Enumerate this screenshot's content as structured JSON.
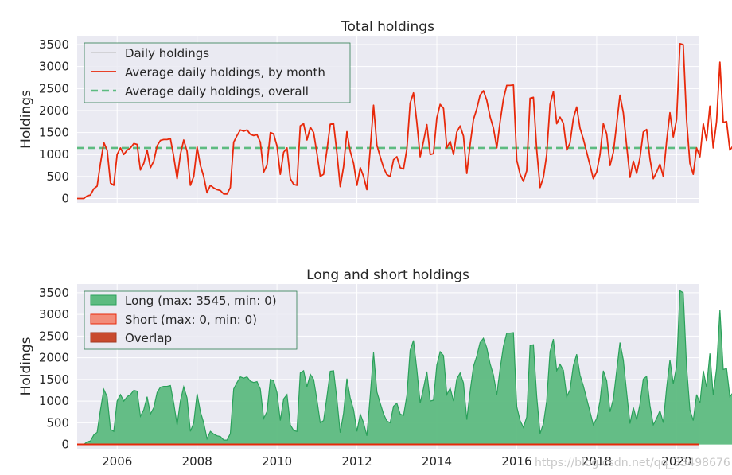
{
  "colors": {
    "plot_bg": "#EAEAF2",
    "grid": "#FFFFFF",
    "daily": "#A9A9A9",
    "monthly": "#E8290B",
    "overall": "#5DBB80",
    "long_fill": "#5DBB80",
    "long_edge": "#2AA05A",
    "short_fill": "#F28C7A",
    "short_edge": "#E8290B",
    "overlap_fill": "#C84A2E",
    "overlap_edge": "#A33A22",
    "legend_border": "#2E7D4F"
  },
  "watermark": "https://blog.csdn.net/qq_33498676",
  "chart_data": [
    {
      "type": "line",
      "title": "Total holdings",
      "xlabel": "",
      "ylabel": "Holdings",
      "xlim": [
        2005.0,
        2020.55
      ],
      "ylim": [
        -100,
        3700
      ],
      "yticks": [
        0,
        500,
        1000,
        1500,
        2000,
        2500,
        3000,
        3500
      ],
      "grid": true,
      "legend_placement": "top-left",
      "legend": [
        "Daily holdings",
        "Average daily holdings, by month",
        "Average daily holdings, overall"
      ],
      "overall_average": 1150,
      "series": [
        {
          "name": "Average daily holdings, by month",
          "x_start": 2005.0,
          "x_step_months": 1,
          "values": [
            0,
            0,
            0,
            60,
            80,
            220,
            280,
            800,
            1270,
            1100,
            350,
            300,
            1000,
            1150,
            1000,
            1100,
            1150,
            1250,
            1230,
            650,
            800,
            1100,
            700,
            850,
            1200,
            1320,
            1340,
            1340,
            1360,
            950,
            450,
            1000,
            1330,
            1070,
            300,
            500,
            1170,
            750,
            500,
            130,
            300,
            240,
            200,
            180,
            100,
            100,
            250,
            1280,
            1430,
            1560,
            1530,
            1560,
            1460,
            1430,
            1450,
            1280,
            600,
            760,
            1500,
            1470,
            1200,
            550,
            1050,
            1150,
            450,
            320,
            300,
            1650,
            1700,
            1330,
            1620,
            1500,
            1020,
            500,
            550,
            1100,
            1690,
            1700,
            1030,
            270,
            720,
            1520,
            1070,
            800,
            300,
            700,
            500,
            200,
            1120,
            2120,
            1210,
            950,
            700,
            540,
            500,
            880,
            950,
            700,
            670,
            1130,
            2170,
            2400,
            1730,
            950,
            1300,
            1680,
            1000,
            1020,
            1830,
            2140,
            2050,
            1150,
            1300,
            1000,
            1510,
            1650,
            1420,
            570,
            1230,
            1800,
            2040,
            2350,
            2450,
            2230,
            1860,
            1600,
            1150,
            1740,
            2260,
            2570,
            2570,
            2580,
            870,
            550,
            390,
            630,
            2280,
            2300,
            1100,
            250,
            480,
            1000,
            2140,
            2430,
            1700,
            1850,
            1710,
            1100,
            1260,
            1820,
            2080,
            1600,
            1350,
            1050,
            750,
            450,
            600,
            1000,
            1700,
            1470,
            750,
            1050,
            1690,
            2350,
            1950,
            1200,
            480,
            850,
            570,
            920,
            1510,
            1570,
            900,
            450,
            600,
            780,
            500,
            1300,
            1950,
            1400,
            1800,
            3520,
            3500,
            1800,
            800,
            550,
            1150,
            950,
            1700,
            1320,
            2100,
            1150,
            1750,
            3100,
            1730,
            1750,
            1100,
            1200,
            1700,
            2430,
            3100
          ]
        },
        {
          "name": "Daily holdings",
          "x_start": 2005.0,
          "x_step_months": 1,
          "values": [
            0,
            0,
            0,
            60,
            80,
            220,
            280,
            800,
            1270,
            1100,
            350,
            300,
            1000,
            1150,
            1000,
            1100,
            1150,
            1250,
            1230,
            650,
            800,
            1100,
            700,
            850,
            1200,
            1320,
            1340,
            1340,
            1360,
            950,
            450,
            1000,
            1330,
            1070,
            300,
            500,
            1170,
            750,
            500,
            130,
            300,
            240,
            200,
            180,
            100,
            100,
            250,
            1280,
            1430,
            1560,
            1530,
            1560,
            1460,
            1430,
            1450,
            1280,
            600,
            760,
            1500,
            1470,
            1200,
            550,
            1050,
            1150,
            450,
            320,
            300,
            1650,
            1700,
            1330,
            1620,
            1500,
            1020,
            500,
            550,
            1100,
            1690,
            1700,
            1030,
            270,
            720,
            1520,
            1070,
            800,
            300,
            700,
            500,
            200,
            1120,
            2120,
            1210,
            950,
            700,
            540,
            500,
            880,
            950,
            700,
            670,
            1130,
            2170,
            2400,
            1730,
            950,
            1300,
            1680,
            1000,
            1020,
            1830,
            2140,
            2050,
            1150,
            1300,
            1000,
            1510,
            1650,
            1420,
            570,
            1230,
            1800,
            2040,
            2350,
            2450,
            2230,
            1860,
            1600,
            1150,
            1740,
            2260,
            2570,
            2570,
            2580,
            870,
            550,
            390,
            630,
            2280,
            2300,
            1100,
            250,
            480,
            1000,
            2140,
            2430,
            1700,
            1850,
            1710,
            1100,
            1260,
            1820,
            2080,
            1600,
            1350,
            1050,
            750,
            450,
            600,
            1000,
            1700,
            1470,
            750,
            1050,
            1690,
            2350,
            1950,
            1200,
            480,
            850,
            570,
            920,
            1510,
            1570,
            900,
            450,
            600,
            780,
            500,
            1300,
            1950,
            1400,
            1800,
            3520,
            3500,
            1800,
            800,
            550,
            1150,
            950,
            1700,
            1320,
            2100,
            1150,
            1750,
            3100,
            1730,
            1750,
            1100,
            1200,
            1700,
            2430,
            3100
          ]
        }
      ]
    },
    {
      "type": "area",
      "title": "Long and short holdings",
      "xlabel": "",
      "ylabel": "Holdings",
      "xlim": [
        2005.0,
        2020.55
      ],
      "ylim": [
        -100,
        3700
      ],
      "yticks": [
        0,
        500,
        1000,
        1500,
        2000,
        2500,
        3000,
        3500
      ],
      "xticks": [
        "2006",
        "2008",
        "2010",
        "2012",
        "2014",
        "2016",
        "2018",
        "2020"
      ],
      "xtick_values": [
        2006,
        2008,
        2010,
        2012,
        2014,
        2016,
        2018,
        2020
      ],
      "grid": true,
      "legend_placement": "top-left",
      "legend": [
        "Long (max: 3545, min: 0)",
        "Short (max: 0, min: 0)",
        "Overlap"
      ],
      "series": [
        {
          "name": "Long (max: 3545, min: 0)",
          "x_start": 2005.0,
          "x_step_months": 1,
          "values": [
            0,
            0,
            0,
            60,
            80,
            220,
            280,
            800,
            1270,
            1100,
            350,
            300,
            1000,
            1150,
            1000,
            1100,
            1150,
            1250,
            1230,
            650,
            800,
            1100,
            700,
            850,
            1200,
            1320,
            1340,
            1340,
            1360,
            950,
            450,
            1000,
            1330,
            1070,
            300,
            500,
            1170,
            750,
            500,
            130,
            300,
            240,
            200,
            180,
            100,
            100,
            250,
            1280,
            1430,
            1560,
            1530,
            1560,
            1460,
            1430,
            1450,
            1280,
            600,
            760,
            1500,
            1470,
            1200,
            550,
            1050,
            1150,
            450,
            320,
            300,
            1650,
            1700,
            1330,
            1620,
            1500,
            1020,
            500,
            550,
            1100,
            1690,
            1700,
            1030,
            270,
            720,
            1520,
            1070,
            800,
            300,
            700,
            500,
            200,
            1120,
            2120,
            1210,
            950,
            700,
            540,
            500,
            880,
            950,
            700,
            670,
            1130,
            2170,
            2400,
            1730,
            950,
            1300,
            1680,
            1000,
            1020,
            1830,
            2140,
            2050,
            1150,
            1300,
            1000,
            1510,
            1650,
            1420,
            570,
            1230,
            1800,
            2040,
            2350,
            2450,
            2230,
            1860,
            1600,
            1150,
            1740,
            2260,
            2570,
            2570,
            2580,
            870,
            550,
            390,
            630,
            2280,
            2300,
            1100,
            250,
            480,
            1000,
            2140,
            2430,
            1700,
            1850,
            1710,
            1100,
            1260,
            1820,
            2080,
            1600,
            1350,
            1050,
            750,
            450,
            600,
            1000,
            1700,
            1470,
            750,
            1050,
            1690,
            2350,
            1950,
            1200,
            480,
            850,
            570,
            920,
            1510,
            1570,
            900,
            450,
            600,
            780,
            500,
            1300,
            1950,
            1400,
            1800,
            3545,
            3500,
            1800,
            800,
            550,
            1150,
            950,
            1700,
            1320,
            2100,
            1150,
            1750,
            3100,
            1730,
            1750,
            1100,
            1200,
            1700,
            2430,
            3500
          ]
        },
        {
          "name": "Short (max: 0, min: 0)",
          "constant": 0
        }
      ]
    }
  ]
}
